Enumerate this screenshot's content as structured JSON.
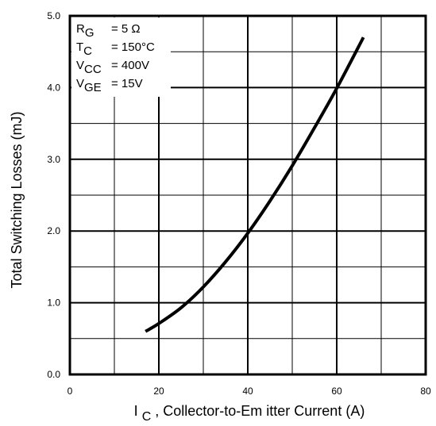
{
  "chart_data": {
    "type": "line",
    "xlabel": {
      "main": "I",
      "sub": "C",
      "rest": " , Collector-to-Em itter Current (A)"
    },
    "ylabel": "Total Switching Losses (mJ)",
    "xlim": [
      0,
      80
    ],
    "ylim": [
      0,
      5
    ],
    "x_major_ticks": [
      0,
      20,
      40,
      60,
      80
    ],
    "x_tick_labels": [
      "0",
      "20",
      "40",
      "60",
      "80"
    ],
    "y_major_ticks": [
      0,
      1,
      2,
      3,
      4,
      5
    ],
    "y_tick_labels": [
      "0.0",
      "1.0",
      "2.0",
      "3.0",
      "4.0",
      "5.0"
    ],
    "x_minor_step": 10,
    "y_minor_step": 0.5,
    "grid": true,
    "conditions": [
      {
        "main": "R",
        "sub": "G",
        "value": "= 5 Ω"
      },
      {
        "main": "T",
        "sub": "C",
        "value": "= 150°C"
      },
      {
        "main": "V",
        "sub": "CC",
        "value": "= 400V"
      },
      {
        "main": "V",
        "sub": "GE",
        "value": "= 15V"
      }
    ],
    "series": [
      {
        "color": "#000000",
        "x": [
          17,
          20,
          25,
          30,
          35,
          40,
          45,
          50,
          55,
          60,
          66
        ],
        "y": [
          0.6,
          0.71,
          0.93,
          1.22,
          1.57,
          1.97,
          2.42,
          2.91,
          3.44,
          3.99,
          4.7
        ]
      }
    ]
  }
}
